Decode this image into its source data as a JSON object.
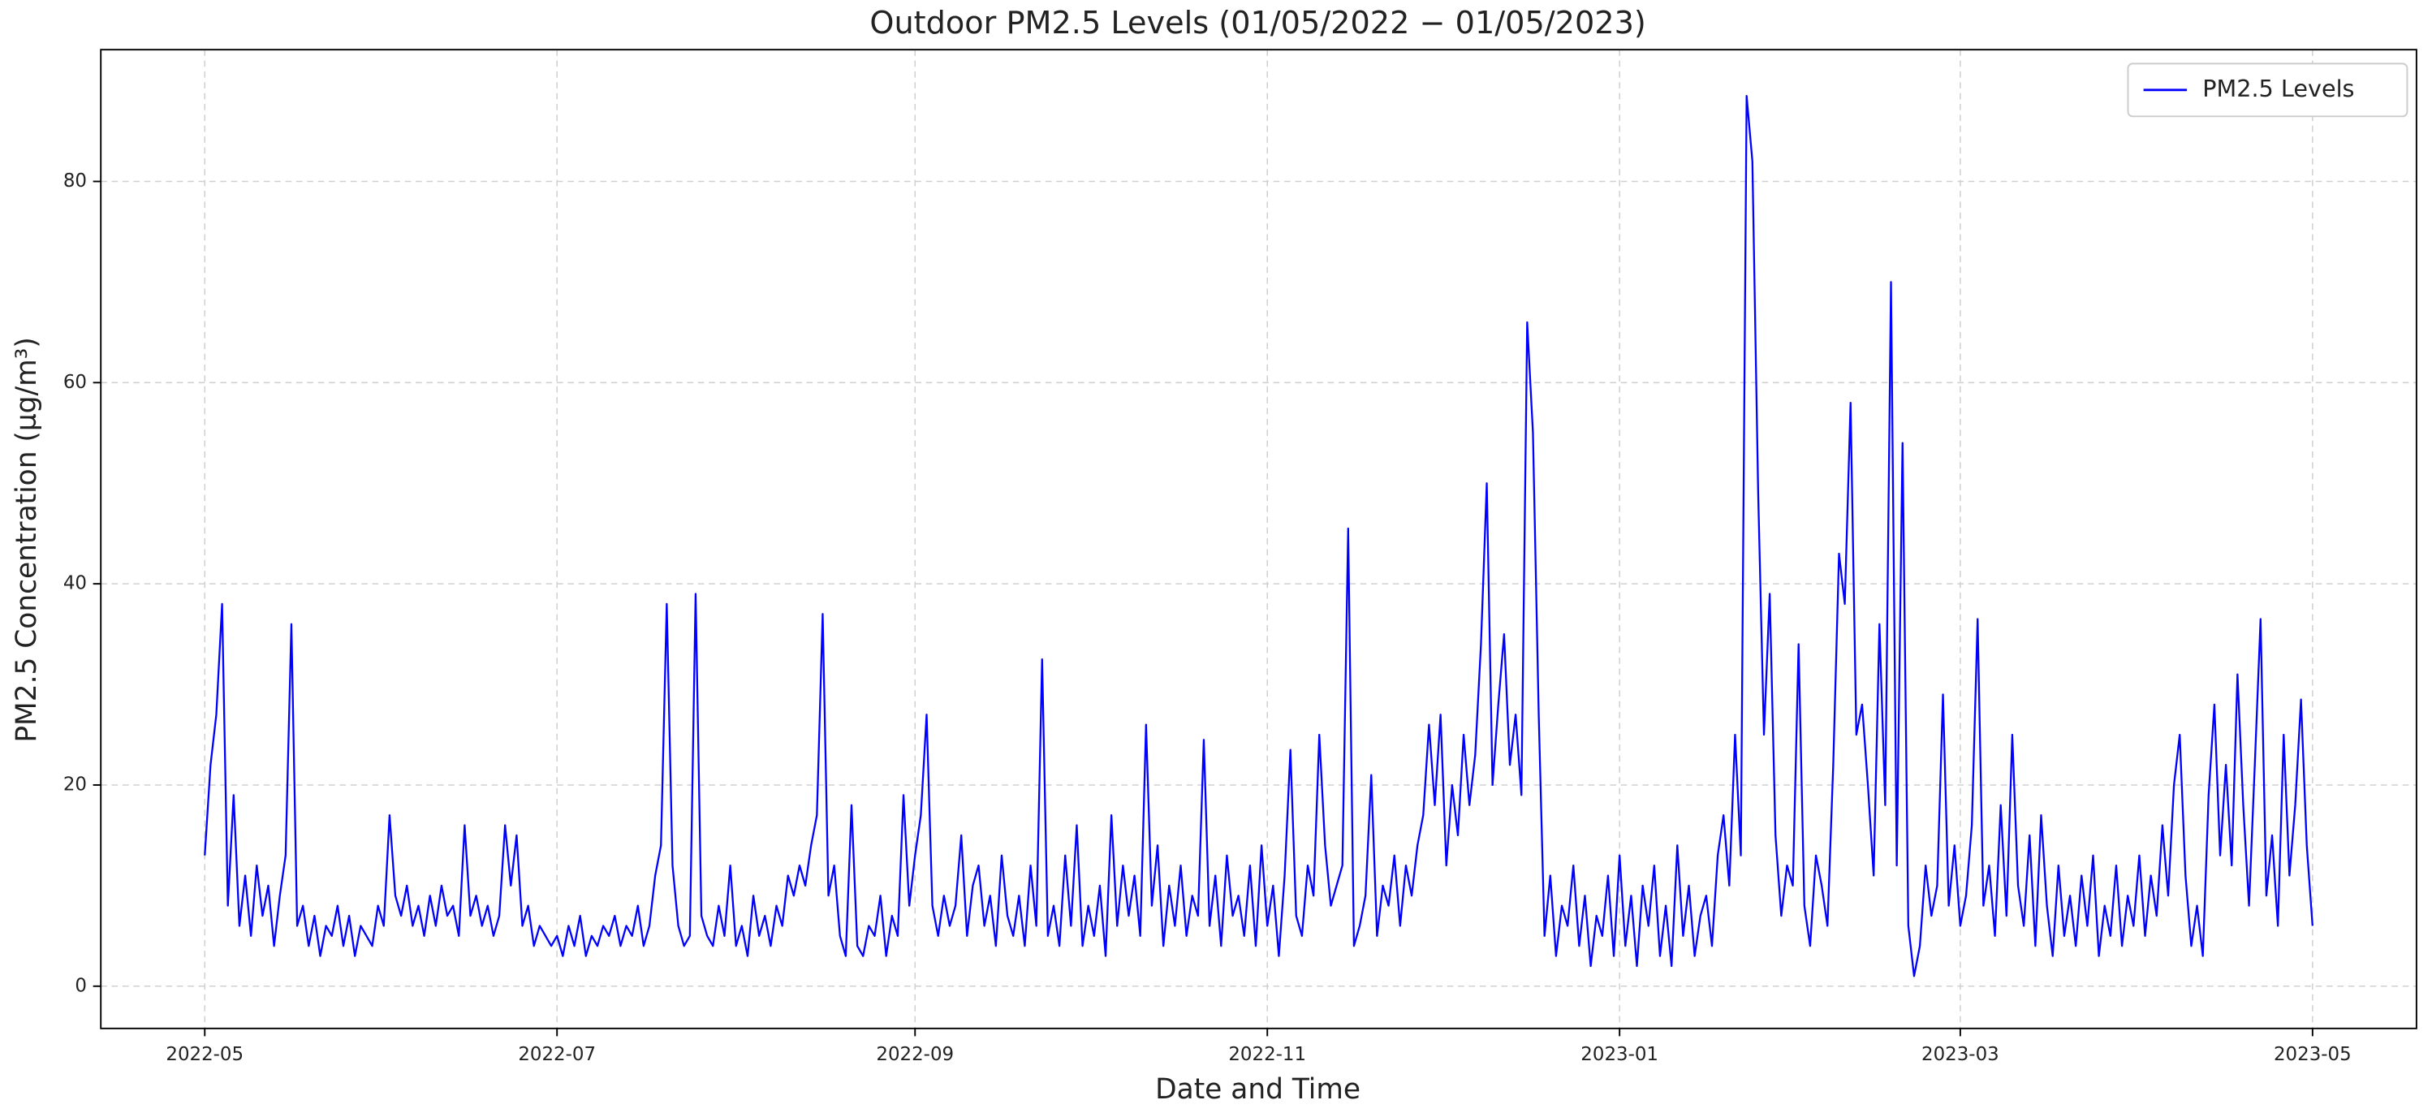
{
  "chart_data": {
    "type": "line",
    "title": "Outdoor PM2.5 Levels (01/05/2022 − 01/05/2023)",
    "x_label": "Date and Time",
    "y_label": "PM2.5 Concentration (µg/m³)",
    "grid": true,
    "legend": "upper right",
    "xlim": [
      -18,
      383
    ],
    "xticks": [
      {
        "value": 0,
        "label": "2022-05"
      },
      {
        "value": 61,
        "label": "2022-07"
      },
      {
        "value": 123,
        "label": "2022-09"
      },
      {
        "value": 184,
        "label": "2022-11"
      },
      {
        "value": 245,
        "label": "2023-01"
      },
      {
        "value": 304,
        "label": "2023-03"
      },
      {
        "value": 365,
        "label": "2023-05"
      }
    ],
    "ylim": [
      -4.2,
      93.1
    ],
    "yticks": [
      0,
      20,
      40,
      60,
      80
    ],
    "x": [
      0,
      1,
      2,
      3,
      4,
      5,
      6,
      7,
      8,
      9,
      10,
      11,
      12,
      13,
      14,
      15,
      16,
      17,
      18,
      19,
      20,
      21,
      22,
      23,
      24,
      25,
      26,
      27,
      28,
      29,
      30,
      31,
      32,
      33,
      34,
      35,
      36,
      37,
      38,
      39,
      40,
      41,
      42,
      43,
      44,
      45,
      46,
      47,
      48,
      49,
      50,
      51,
      52,
      53,
      54,
      55,
      56,
      57,
      58,
      59,
      60,
      61,
      62,
      63,
      64,
      65,
      66,
      67,
      68,
      69,
      70,
      71,
      72,
      73,
      74,
      75,
      76,
      77,
      78,
      79,
      80,
      81,
      82,
      83,
      84,
      85,
      86,
      87,
      88,
      89,
      90,
      91,
      92,
      93,
      94,
      95,
      96,
      97,
      98,
      99,
      100,
      101,
      102,
      103,
      104,
      105,
      106,
      107,
      108,
      109,
      110,
      111,
      112,
      113,
      114,
      115,
      116,
      117,
      118,
      119,
      120,
      121,
      122,
      123,
      124,
      125,
      126,
      127,
      128,
      129,
      130,
      131,
      132,
      133,
      134,
      135,
      136,
      137,
      138,
      139,
      140,
      141,
      142,
      143,
      144,
      145,
      146,
      147,
      148,
      149,
      150,
      151,
      152,
      153,
      154,
      155,
      156,
      157,
      158,
      159,
      160,
      161,
      162,
      163,
      164,
      165,
      166,
      167,
      168,
      169,
      170,
      171,
      172,
      173,
      174,
      175,
      176,
      177,
      178,
      179,
      180,
      181,
      182,
      183,
      184,
      185,
      186,
      187,
      188,
      189,
      190,
      191,
      192,
      193,
      194,
      195,
      196,
      197,
      198,
      199,
      200,
      201,
      202,
      203,
      204,
      205,
      206,
      207,
      208,
      209,
      210,
      211,
      212,
      213,
      214,
      215,
      216,
      217,
      218,
      219,
      220,
      221,
      222,
      223,
      224,
      225,
      226,
      227,
      228,
      229,
      230,
      231,
      232,
      233,
      234,
      235,
      236,
      237,
      238,
      239,
      240,
      241,
      242,
      243,
      244,
      245,
      246,
      247,
      248,
      249,
      250,
      251,
      252,
      253,
      254,
      255,
      256,
      257,
      258,
      259,
      260,
      261,
      262,
      263,
      264,
      265,
      266,
      267,
      268,
      269,
      270,
      271,
      272,
      273,
      274,
      275,
      276,
      277,
      278,
      279,
      280,
      281,
      282,
      283,
      284,
      285,
      286,
      287,
      288,
      289,
      290,
      291,
      292,
      293,
      294,
      295,
      296,
      297,
      298,
      299,
      300,
      301,
      302,
      303,
      304,
      305,
      306,
      307,
      308,
      309,
      310,
      311,
      312,
      313,
      314,
      315,
      316,
      317,
      318,
      319,
      320,
      321,
      322,
      323,
      324,
      325,
      326,
      327,
      328,
      329,
      330,
      331,
      332,
      333,
      334,
      335,
      336,
      337,
      338,
      339,
      340,
      341,
      342,
      343,
      344,
      345,
      346,
      347,
      348,
      349,
      350,
      351,
      352,
      353,
      354,
      355,
      356,
      357,
      358,
      359,
      360,
      361,
      362,
      363,
      364,
      365
    ],
    "series": [
      {
        "name": "PM2.5 Levels",
        "color": "#0000ff",
        "values": [
          13,
          22,
          27,
          38,
          8,
          19,
          6,
          11,
          5,
          12,
          7,
          10,
          4,
          9,
          13,
          36,
          6,
          8,
          4,
          7,
          3,
          6,
          5,
          8,
          4,
          7,
          3,
          6,
          5,
          4,
          8,
          6,
          17,
          9,
          7,
          10,
          6,
          8,
          5,
          9,
          6,
          10,
          7,
          8,
          5,
          16,
          7,
          9,
          6,
          8,
          5,
          7,
          16,
          10,
          15,
          6,
          8,
          4,
          6,
          5,
          4,
          5,
          3,
          6,
          4,
          7,
          3,
          5,
          4,
          6,
          5,
          7,
          4,
          6,
          5,
          8,
          4,
          6,
          11,
          14,
          38,
          12,
          6,
          4,
          5,
          39,
          7,
          5,
          4,
          8,
          5,
          12,
          4,
          6,
          3,
          9,
          5,
          7,
          4,
          8,
          6,
          11,
          9,
          12,
          10,
          14,
          17,
          37,
          9,
          12,
          5,
          3,
          18,
          4,
          3,
          6,
          5,
          9,
          3,
          7,
          5,
          19,
          8,
          13,
          17,
          27,
          8,
          5,
          9,
          6,
          8,
          15,
          5,
          10,
          12,
          6,
          9,
          4,
          13,
          7,
          5,
          9,
          4,
          12,
          6,
          32.5,
          5,
          8,
          4,
          13,
          6,
          16,
          4,
          8,
          5,
          10,
          3,
          17,
          6,
          12,
          7,
          11,
          5,
          26,
          8,
          14,
          4,
          10,
          6,
          12,
          5,
          9,
          7,
          24.5,
          6,
          11,
          4,
          13,
          7,
          9,
          5,
          12,
          4,
          14,
          6,
          10,
          3,
          11,
          23.5,
          7,
          5,
          12,
          9,
          25,
          14,
          8,
          10,
          12,
          45.5,
          4,
          6,
          9,
          21,
          5,
          10,
          8,
          13,
          6,
          12,
          9,
          14,
          17,
          26,
          18,
          27,
          12,
          20,
          15,
          25,
          18,
          23,
          34,
          50,
          20,
          28,
          35,
          22,
          27,
          19,
          66,
          55,
          27,
          5,
          11,
          3,
          8,
          6,
          12,
          4,
          9,
          2,
          7,
          5,
          11,
          3,
          13,
          4,
          9,
          2,
          10,
          6,
          12,
          3,
          8,
          2,
          14,
          5,
          10,
          3,
          7,
          9,
          4,
          13,
          17,
          10,
          25,
          13,
          88.5,
          82,
          49,
          25,
          39,
          15,
          7,
          12,
          10,
          34,
          8,
          4,
          13,
          10,
          6,
          22,
          43,
          38,
          58,
          25,
          28,
          20,
          11,
          36,
          18,
          70,
          12,
          54,
          6,
          1,
          4,
          12,
          7,
          10,
          29,
          8,
          14,
          6,
          9,
          16,
          36.5,
          8,
          12,
          5,
          18,
          7,
          25,
          10,
          6,
          15,
          4,
          17,
          8,
          3,
          12,
          5,
          9,
          4,
          11,
          6,
          13,
          3,
          8,
          5,
          12,
          4,
          9,
          6,
          13,
          5,
          11,
          7,
          16,
          9,
          20,
          25,
          11,
          4,
          8,
          3,
          19,
          28,
          13,
          22,
          12,
          31,
          18,
          8,
          22,
          36.5,
          9,
          15,
          6,
          25,
          11,
          18,
          28.5,
          14,
          6
        ]
      }
    ]
  }
}
